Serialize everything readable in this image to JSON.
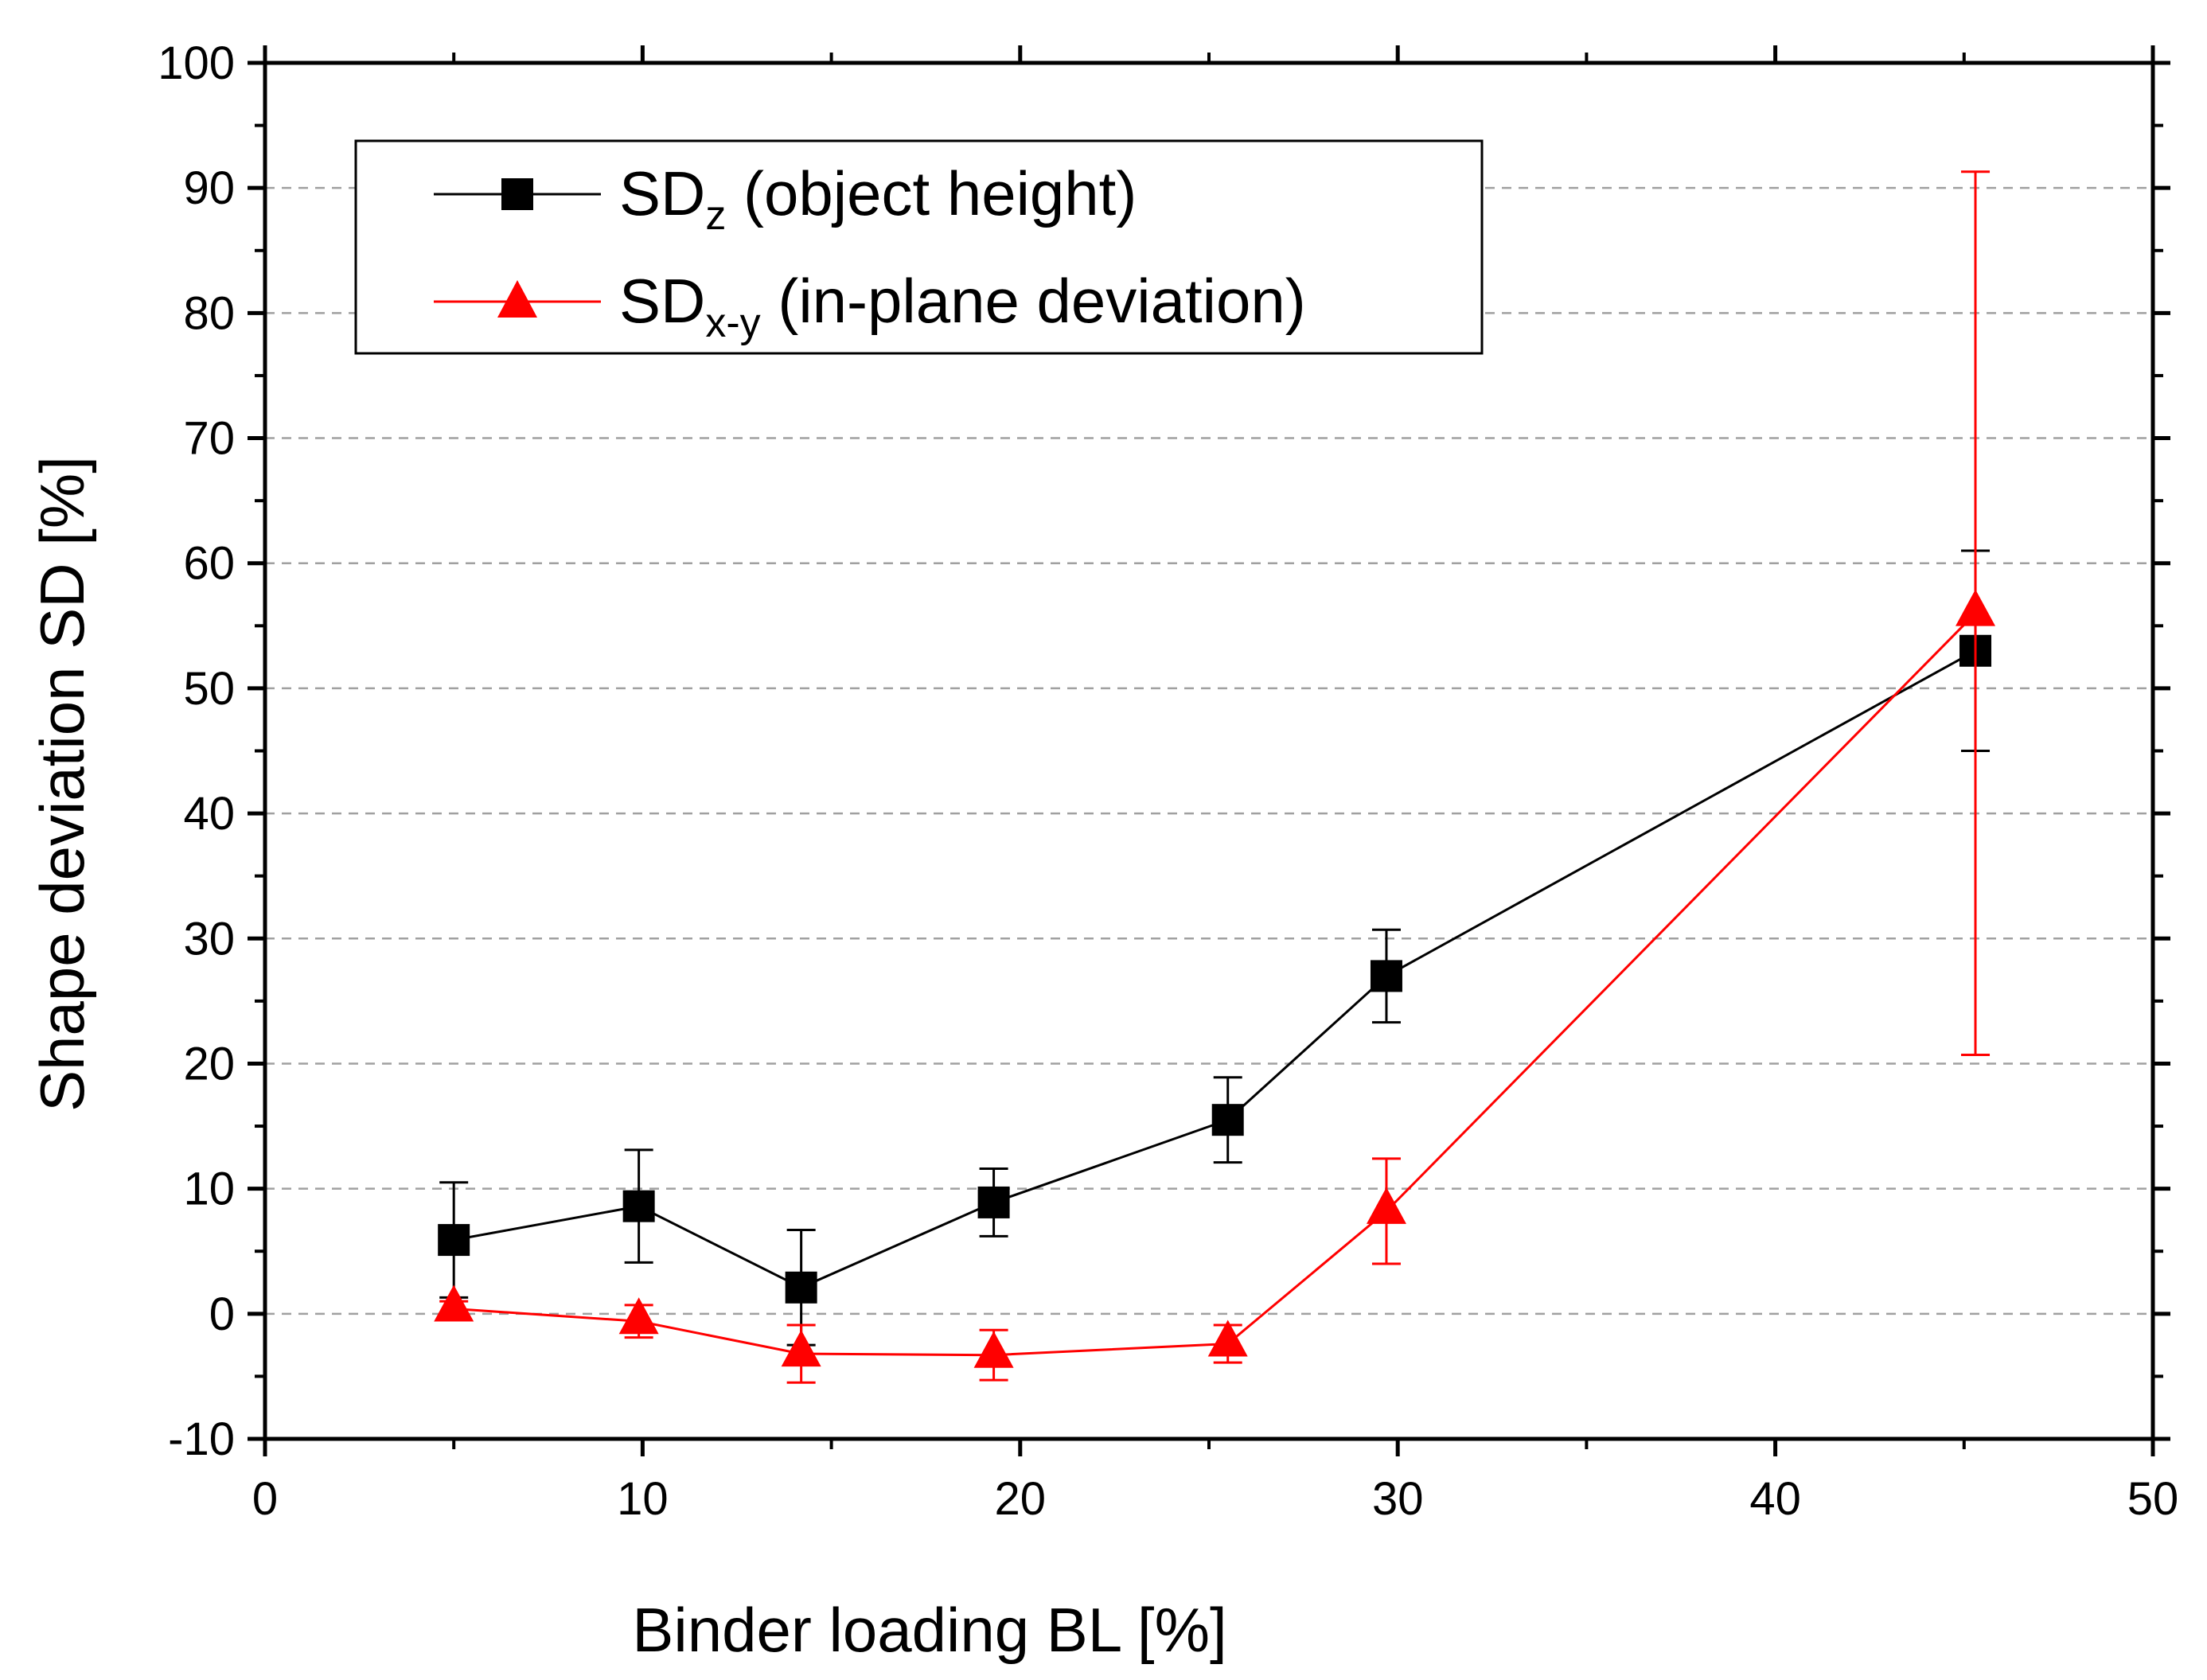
{
  "chart_data": {
    "type": "line",
    "xlabel": "Binder loading BL [%]",
    "ylabel": "Shape deviation SD [%]",
    "xlim": [
      0,
      50
    ],
    "ylim": [
      -10,
      100
    ],
    "xticks": [
      0,
      10,
      20,
      30,
      40,
      50
    ],
    "yticks": [
      -10,
      0,
      10,
      20,
      30,
      40,
      50,
      60,
      70,
      80,
      90,
      100
    ],
    "grid": "horizontal dashed",
    "legend_position": "top-left",
    "series": [
      {
        "name": "SDz (object height)",
        "legend_main": "SD",
        "legend_sub": "z",
        "legend_rest": " (object height)",
        "marker": "square",
        "color": "#000000",
        "x": [
          5.0,
          9.9,
          14.2,
          19.3,
          25.5,
          29.7,
          45.3
        ],
        "y": [
          5.9,
          8.6,
          2.1,
          8.9,
          15.5,
          27.0,
          53.0
        ],
        "err": [
          4.6,
          4.5,
          4.6,
          2.7,
          3.4,
          3.7,
          8.0
        ]
      },
      {
        "name": "SDx-y (in-plane deviation)",
        "legend_main": "SD",
        "legend_sub": "x-y",
        "legend_rest": " (in-plane deviation)",
        "marker": "triangle",
        "color": "#ff0000",
        "x": [
          5.0,
          9.9,
          14.2,
          19.3,
          25.5,
          29.7,
          45.3
        ],
        "y": [
          0.4,
          -0.6,
          -3.2,
          -3.3,
          -2.4,
          8.2,
          56.0
        ],
        "err": [
          0.6,
          1.3,
          2.3,
          2.0,
          1.5,
          4.2,
          35.3
        ]
      }
    ]
  }
}
